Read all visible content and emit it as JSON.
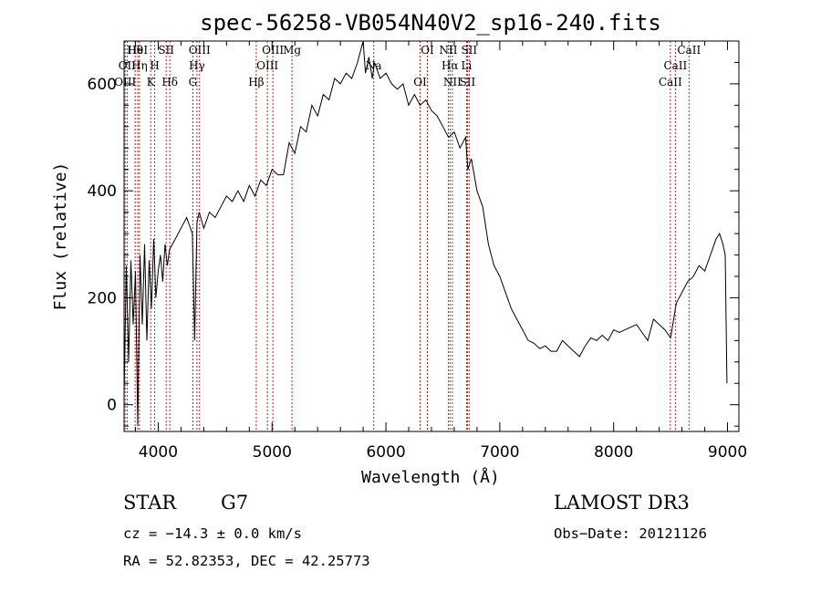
{
  "chart_data": {
    "type": "line",
    "title": "spec-56258-VB054N40V2_sp16-240.fits",
    "xlabel": "Wavelength (Å)",
    "ylabel": "Flux (relative)",
    "xlim": [
      3700,
      9100
    ],
    "ylim": [
      -50,
      680
    ],
    "x_ticks": [
      4000,
      5000,
      6000,
      7000,
      8000,
      9000
    ],
    "x_tick_labels": [
      "4000",
      "5000",
      "6000",
      "7000",
      "8000",
      "9000"
    ],
    "y_ticks": [
      0,
      200,
      400,
      600
    ],
    "y_tick_labels": [
      "0",
      "200",
      "400",
      "600"
    ],
    "series": [
      {
        "name": "flux",
        "x": [
          3700,
          3720,
          3740,
          3760,
          3780,
          3800,
          3820,
          3840,
          3860,
          3880,
          3900,
          3920,
          3940,
          3960,
          3980,
          4000,
          4020,
          4040,
          4060,
          4080,
          4100,
          4150,
          4200,
          4250,
          4300,
          4320,
          4340,
          4360,
          4400,
          4450,
          4500,
          4550,
          4600,
          4650,
          4700,
          4750,
          4800,
          4850,
          4900,
          4950,
          5000,
          5050,
          5100,
          5150,
          5200,
          5250,
          5300,
          5350,
          5400,
          5450,
          5500,
          5550,
          5600,
          5650,
          5700,
          5750,
          5800,
          5820,
          5850,
          5880,
          5900,
          5950,
          6000,
          6050,
          6100,
          6150,
          6200,
          6250,
          6300,
          6350,
          6400,
          6450,
          6500,
          6550,
          6600,
          6650,
          6700,
          6720,
          6750,
          6800,
          6850,
          6900,
          6950,
          7000,
          7050,
          7100,
          7150,
          7200,
          7250,
          7300,
          7350,
          7400,
          7450,
          7500,
          7550,
          7600,
          7650,
          7700,
          7750,
          7800,
          7850,
          7900,
          7950,
          8000,
          8050,
          8100,
          8150,
          8200,
          8250,
          8300,
          8350,
          8400,
          8450,
          8500,
          8550,
          8600,
          8650,
          8700,
          8750,
          8800,
          8850,
          8900,
          8930,
          8960,
          8980,
          8995
        ],
        "values": [
          20,
          260,
          80,
          270,
          150,
          250,
          -40,
          280,
          150,
          300,
          120,
          270,
          180,
          310,
          200,
          250,
          280,
          230,
          300,
          260,
          290,
          310,
          330,
          350,
          320,
          120,
          340,
          360,
          330,
          360,
          350,
          370,
          390,
          380,
          400,
          380,
          410,
          390,
          420,
          410,
          440,
          430,
          430,
          490,
          470,
          520,
          510,
          560,
          540,
          580,
          570,
          610,
          600,
          620,
          610,
          640,
          680,
          620,
          650,
          610,
          640,
          610,
          620,
          600,
          590,
          600,
          560,
          580,
          560,
          570,
          550,
          540,
          520,
          500,
          510,
          480,
          500,
          440,
          460,
          400,
          370,
          300,
          260,
          240,
          210,
          180,
          160,
          140,
          120,
          115,
          105,
          110,
          100,
          100,
          120,
          110,
          100,
          90,
          110,
          125,
          120,
          130,
          120,
          140,
          135,
          140,
          145,
          150,
          135,
          120,
          160,
          150,
          140,
          125,
          190,
          210,
          230,
          240,
          260,
          250,
          280,
          310,
          320,
          300,
          280,
          40
        ]
      }
    ],
    "spectral_lines": [
      {
        "label": "Hθ",
        "wavelength": 3797
      },
      {
        "label": "OII",
        "wavelength": 3727
      },
      {
        "label": "OIII",
        "wavelength": 3710
      },
      {
        "label": "HeI",
        "wavelength": 3820
      },
      {
        "label": "Hη",
        "wavelength": 3835
      },
      {
        "label": "K",
        "wavelength": 3934
      },
      {
        "label": "SII",
        "wavelength": 4070
      },
      {
        "label": "H",
        "wavelength": 3969
      },
      {
        "label": "Hδ",
        "wavelength": 4102
      },
      {
        "label": "OIII",
        "wavelength": 4363
      },
      {
        "label": "Hγ",
        "wavelength": 4340
      },
      {
        "label": "G",
        "wavelength": 4304
      },
      {
        "label": "OIII",
        "wavelength": 5007
      },
      {
        "label": "OIII",
        "wavelength": 4959
      },
      {
        "label": "Hβ",
        "wavelength": 4861
      },
      {
        "label": "Mg",
        "wavelength": 5175
      },
      {
        "label": "Na",
        "wavelength": 5893
      },
      {
        "label": "OI",
        "wavelength": 6300
      },
      {
        "label": "OI",
        "wavelength": 6364
      },
      {
        "label": "Hα",
        "wavelength": 6563
      },
      {
        "label": "SII",
        "wavelength": 6716
      },
      {
        "label": "NII",
        "wavelength": 6548
      },
      {
        "label": "Li",
        "wavelength": 6708
      },
      {
        "label": "NII",
        "wavelength": 6583
      },
      {
        "label": "SII",
        "wavelength": 6731
      },
      {
        "label": "CaII",
        "wavelength": 8542
      },
      {
        "label": "CaII",
        "wavelength": 8498
      },
      {
        "label": "CaII",
        "wavelength": 8662
      }
    ]
  },
  "info": {
    "object_class": "STAR",
    "subclass": "G7",
    "survey": "LAMOST DR3",
    "cz_line": "cz = −14.3 ± 0.0 km/s",
    "obs_date_line": "Obs−Date: 20121126",
    "coords_line": "RA =  52.82353, DEC =  42.25773"
  },
  "colors": {
    "spectrum": "#000000",
    "line_marker": "#b22222",
    "axes": "#000000"
  }
}
